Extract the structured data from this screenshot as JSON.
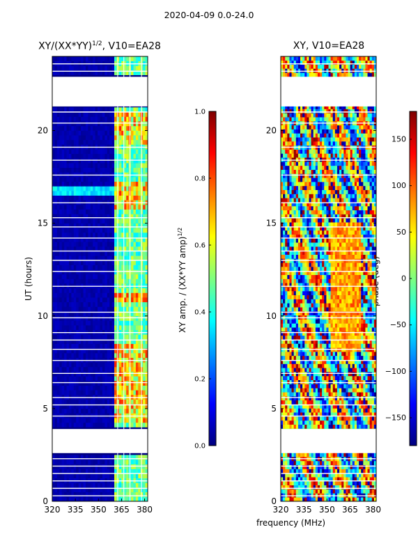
{
  "figure": {
    "suptitle": "2020-04-09 0.0-24.0"
  },
  "panels": {
    "left": {
      "title_main": "XY/(XX*YY)",
      "title_sup": "1/2",
      "title_tail": ", V10=EA28",
      "ylabel": "UT (hours)"
    },
    "right": {
      "title": "XY, V10=EA28",
      "xlabel": "frequency (MHz)"
    }
  },
  "colorbars": {
    "amp": {
      "label_main": "XY amp. / (XX*YY amp)",
      "label_sup": "1/2"
    },
    "phase": {
      "label": "phase (deg)"
    }
  },
  "colors": {
    "colormap": [
      "#00007f",
      "#0000ff",
      "#007fff",
      "#00ffff",
      "#7fff7f",
      "#ffff00",
      "#ff7f00",
      "#ff0000",
      "#7f0000"
    ]
  },
  "chart_data": [
    {
      "type": "heatmap",
      "title": "XY/(XX*YY)^1/2, V10=EA28",
      "xlabel": "frequency (MHz)",
      "ylabel": "UT (hours)",
      "xlim": [
        320,
        382
      ],
      "ylim": [
        0,
        24
      ],
      "xticks": [
        320,
        335,
        350,
        365,
        380
      ],
      "yticks": [
        0,
        5,
        10,
        15,
        20
      ],
      "value_range": [
        0.0,
        1.0
      ],
      "colorbar_label": "XY amp. / (XX*YY amp)^1/2",
      "colorbar_ticks": [
        "0.0",
        "0.2",
        "0.4",
        "0.6",
        "0.8",
        "1.0"
      ],
      "data_gaps_hours": [
        [
          2.6,
          3.9
        ],
        [
          21.3,
          22.9
        ]
      ],
      "bright_band_MHz": [
        360,
        382
      ]
    },
    {
      "type": "heatmap",
      "title": "XY, V10=EA28",
      "xlabel": "frequency (MHz)",
      "ylabel": "",
      "xlim": [
        320,
        382
      ],
      "ylim": [
        0,
        24
      ],
      "xticks": [
        320,
        335,
        350,
        365,
        380
      ],
      "yticks": [
        0,
        5,
        10,
        15,
        20
      ],
      "value_range": [
        -180,
        180
      ],
      "colorbar_label": "phase (deg)",
      "colorbar_ticks": [
        "150",
        "100",
        "50",
        "0",
        "−50",
        "−100",
        "−150"
      ],
      "data_gaps_hours": [
        [
          2.6,
          3.9
        ],
        [
          21.3,
          22.9
        ]
      ]
    }
  ]
}
